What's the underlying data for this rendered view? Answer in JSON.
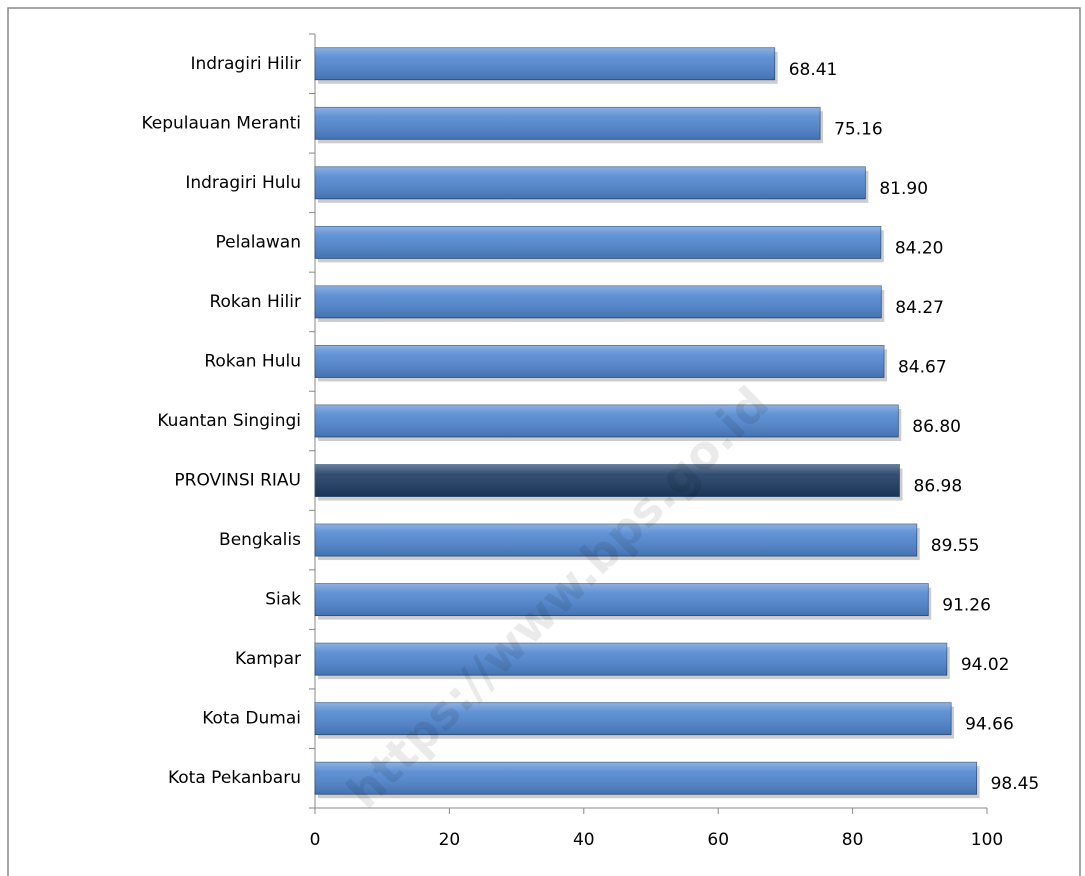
{
  "chart_data": {
    "type": "bar",
    "orientation": "horizontal",
    "categories": [
      "Indragiri Hilir",
      "Kepulauan Meranti",
      "Indragiri Hulu",
      "Pelalawan",
      "Rokan Hilir",
      "Rokan Hulu",
      "Kuantan Singingi",
      "PROVINSI RIAU",
      "Bengkalis",
      "Siak",
      "Kampar",
      "Kota Dumai",
      "Kota Pekanbaru"
    ],
    "values": [
      68.41,
      75.16,
      81.9,
      84.2,
      84.27,
      84.67,
      86.8,
      86.98,
      89.55,
      91.26,
      94.02,
      94.66,
      98.45
    ],
    "value_labels": [
      "68.41",
      "75.16",
      "81.90",
      "84.20",
      "84.27",
      "84.67",
      "86.80",
      "86.98",
      "89.55",
      "91.26",
      "94.02",
      "94.66",
      "98.45"
    ],
    "colors": [
      "#4f86d0",
      "#4f86d0",
      "#4f86d0",
      "#4f86d0",
      "#4f86d0",
      "#4f86d0",
      "#4f86d0",
      "#1d3b63",
      "#4f86d0",
      "#4f86d0",
      "#4f86d0",
      "#4f86d0",
      "#4f86d0"
    ],
    "xlim": [
      0,
      100
    ],
    "xticks": [
      0,
      20,
      40,
      60,
      80,
      100
    ],
    "watermark": "https://www.bps.go.id"
  }
}
